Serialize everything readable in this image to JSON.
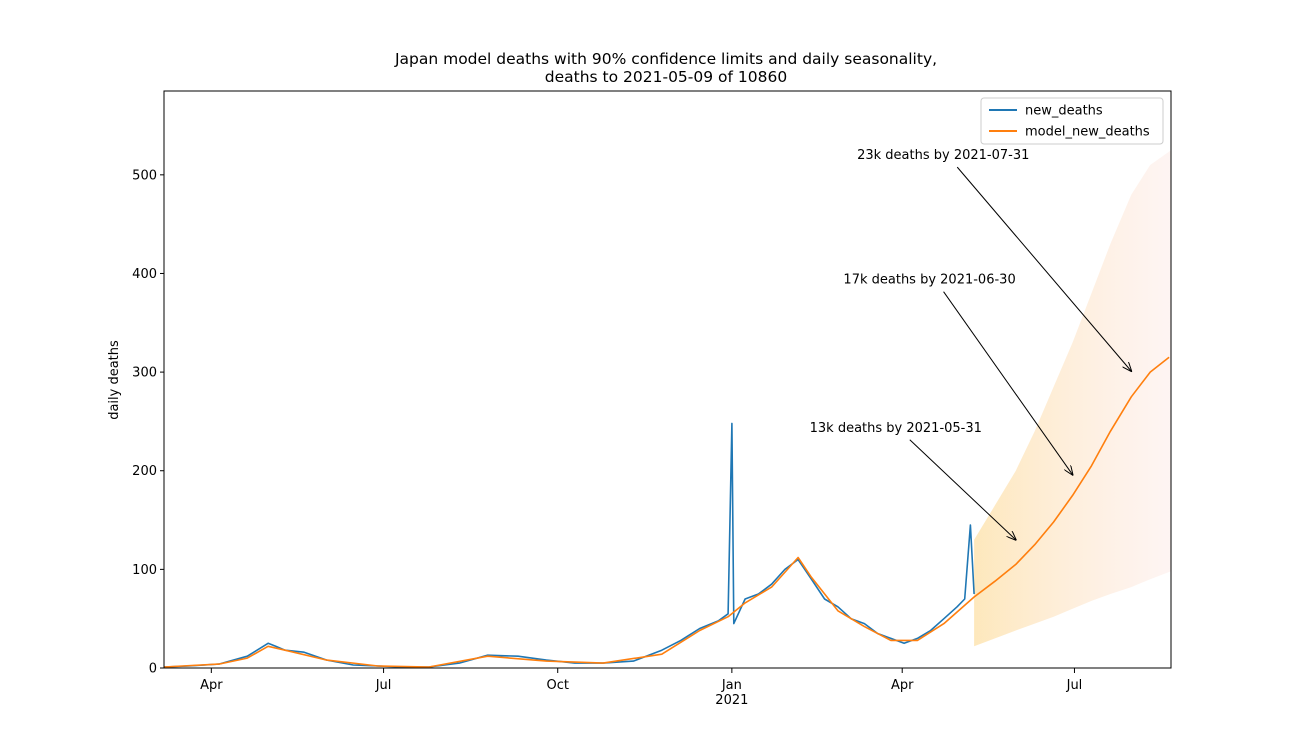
{
  "chart_data": {
    "type": "line",
    "title_line1": "Japan model deaths with 90% confidence limits and daily seasonality,",
    "title_line2": "deaths to 2021-05-09 of 10860",
    "xlabel": "",
    "ylabel": "daily deaths",
    "x_range": [
      "2020-03-07",
      "2021-08-21"
    ],
    "ylim": [
      0,
      585
    ],
    "y_ticks": [
      0,
      100,
      200,
      300,
      400,
      500
    ],
    "x_ticks": [
      {
        "date": "2020-04-01",
        "label": "Apr",
        "sublabel": ""
      },
      {
        "date": "2020-07-01",
        "label": "Jul",
        "sublabel": ""
      },
      {
        "date": "2020-10-01",
        "label": "Oct",
        "sublabel": ""
      },
      {
        "date": "2021-01-01",
        "label": "Jan",
        "sublabel": "2021"
      },
      {
        "date": "2021-04-01",
        "label": "Apr",
        "sublabel": ""
      },
      {
        "date": "2021-07-01",
        "label": "Jul",
        "sublabel": ""
      }
    ],
    "grid": false,
    "legend_position": "top-right",
    "series": [
      {
        "name": "new_deaths",
        "color": "#1f77b4",
        "points": [
          [
            "2020-03-07",
            1
          ],
          [
            "2020-03-20",
            2
          ],
          [
            "2020-04-05",
            4
          ],
          [
            "2020-04-20",
            12
          ],
          [
            "2020-05-01",
            25
          ],
          [
            "2020-05-05",
            22
          ],
          [
            "2020-05-10",
            18
          ],
          [
            "2020-05-20",
            16
          ],
          [
            "2020-06-01",
            8
          ],
          [
            "2020-06-15",
            3
          ],
          [
            "2020-06-28",
            2
          ],
          [
            "2020-07-10",
            1
          ],
          [
            "2020-07-25",
            1
          ],
          [
            "2020-08-10",
            5
          ],
          [
            "2020-08-25",
            13
          ],
          [
            "2020-09-10",
            12
          ],
          [
            "2020-09-25",
            8
          ],
          [
            "2020-10-10",
            5
          ],
          [
            "2020-10-25",
            5
          ],
          [
            "2020-11-10",
            7
          ],
          [
            "2020-11-25",
            18
          ],
          [
            "2020-12-05",
            28
          ],
          [
            "2020-12-15",
            40
          ],
          [
            "2020-12-25",
            48
          ],
          [
            "2020-12-30",
            55
          ],
          [
            "2021-01-01",
            248
          ],
          [
            "2021-01-02",
            45
          ],
          [
            "2021-01-08",
            70
          ],
          [
            "2021-01-15",
            75
          ],
          [
            "2021-01-22",
            85
          ],
          [
            "2021-01-29",
            100
          ],
          [
            "2021-02-05",
            110
          ],
          [
            "2021-02-12",
            90
          ],
          [
            "2021-02-19",
            70
          ],
          [
            "2021-02-26",
            62
          ],
          [
            "2021-03-05",
            50
          ],
          [
            "2021-03-12",
            45
          ],
          [
            "2021-03-19",
            35
          ],
          [
            "2021-03-26",
            30
          ],
          [
            "2021-04-02",
            25
          ],
          [
            "2021-04-09",
            30
          ],
          [
            "2021-04-16",
            38
          ],
          [
            "2021-04-23",
            50
          ],
          [
            "2021-04-30",
            62
          ],
          [
            "2021-05-04",
            70
          ],
          [
            "2021-05-07",
            145
          ],
          [
            "2021-05-09",
            75
          ]
        ]
      },
      {
        "name": "model_new_deaths",
        "color": "#ff7f0e",
        "points": [
          [
            "2020-03-07",
            1
          ],
          [
            "2020-04-05",
            4
          ],
          [
            "2020-04-20",
            10
          ],
          [
            "2020-05-01",
            22
          ],
          [
            "2020-05-10",
            18
          ],
          [
            "2020-06-01",
            8
          ],
          [
            "2020-06-28",
            2
          ],
          [
            "2020-07-25",
            1
          ],
          [
            "2020-08-25",
            12
          ],
          [
            "2020-09-25",
            7
          ],
          [
            "2020-10-25",
            5
          ],
          [
            "2020-11-25",
            14
          ],
          [
            "2020-12-15",
            38
          ],
          [
            "2020-12-30",
            52
          ],
          [
            "2021-01-08",
            66
          ],
          [
            "2021-01-22",
            82
          ],
          [
            "2021-02-05",
            112
          ],
          [
            "2021-02-12",
            92
          ],
          [
            "2021-02-26",
            58
          ],
          [
            "2021-03-12",
            42
          ],
          [
            "2021-03-26",
            28
          ],
          [
            "2021-04-09",
            28
          ],
          [
            "2021-04-23",
            45
          ],
          [
            "2021-05-09",
            72
          ],
          [
            "2021-05-20",
            88
          ],
          [
            "2021-05-31",
            105
          ],
          [
            "2021-06-10",
            125
          ],
          [
            "2021-06-20",
            148
          ],
          [
            "2021-06-30",
            175
          ],
          [
            "2021-07-10",
            205
          ],
          [
            "2021-07-20",
            240
          ],
          [
            "2021-07-31",
            275
          ],
          [
            "2021-08-10",
            300
          ],
          [
            "2021-08-20",
            315
          ]
        ]
      }
    ],
    "confidence_band_90": {
      "points": [
        [
          "2021-05-09",
          22,
          130
        ],
        [
          "2021-05-20",
          30,
          165
        ],
        [
          "2021-05-31",
          38,
          200
        ],
        [
          "2021-06-10",
          45,
          240
        ],
        [
          "2021-06-20",
          52,
          285
        ],
        [
          "2021-06-30",
          60,
          330
        ],
        [
          "2021-07-10",
          68,
          380
        ],
        [
          "2021-07-20",
          75,
          430
        ],
        [
          "2021-07-31",
          82,
          480
        ],
        [
          "2021-08-10",
          90,
          510
        ],
        [
          "2021-08-21",
          98,
          525
        ]
      ]
    },
    "annotations": [
      {
        "text": "13k deaths by 2021-05-31",
        "target_date": "2021-05-31",
        "target_value": 130
      },
      {
        "text": "17k deaths by 2021-06-30",
        "target_date": "2021-06-30",
        "target_value": 196
      },
      {
        "text": "23k deaths by 2021-07-31",
        "target_date": "2021-07-31",
        "target_value": 301
      }
    ]
  }
}
